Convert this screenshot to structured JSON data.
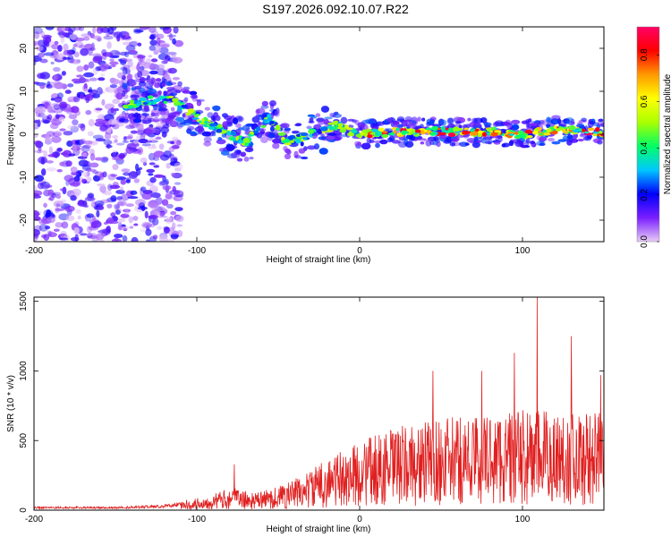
{
  "title": "S197.2026.092.10.07.R22",
  "chart_data": [
    {
      "type": "heatmap",
      "xlabel": "Height of straight line (km)",
      "ylabel": "Frequency (Hz)",
      "xlim": [
        -200,
        150
      ],
      "ylim": [
        -25,
        25
      ],
      "xticks": [
        -200,
        -100,
        0,
        100
      ],
      "yticks": [
        -20,
        -10,
        0,
        10,
        20
      ],
      "colorbar": {
        "label": "Normalized spectral amplitude",
        "ticks": [
          0.0,
          0.2,
          0.4,
          0.6,
          0.8
        ],
        "range": [
          0.0,
          0.92
        ],
        "colormap": [
          "#e8ccf7",
          "#7a1fff",
          "#0000ff",
          "#00c8ff",
          "#00ff66",
          "#aaff00",
          "#ffff00",
          "#ff9900",
          "#ff0000",
          "#ff0066"
        ]
      },
      "ridge": [
        {
          "x": -145,
          "y": 6.5
        },
        {
          "x": -130,
          "y": 8
        },
        {
          "x": -115,
          "y": 8
        },
        {
          "x": -100,
          "y": 4
        },
        {
          "x": -85,
          "y": 1
        },
        {
          "x": -70,
          "y": -2
        },
        {
          "x": -55,
          "y": 4
        },
        {
          "x": -45,
          "y": -2
        },
        {
          "x": -30,
          "y": 0
        },
        {
          "x": -15,
          "y": 2
        },
        {
          "x": 0,
          "y": 0
        },
        {
          "x": 20,
          "y": 0.5
        },
        {
          "x": 40,
          "y": 0.8
        },
        {
          "x": 60,
          "y": 0.5
        },
        {
          "x": 80,
          "y": 0.5
        },
        {
          "x": 100,
          "y": 0
        },
        {
          "x": 120,
          "y": 1
        },
        {
          "x": 150,
          "y": 0.5
        }
      ],
      "noise_region": {
        "x_from": -200,
        "x_to": -110
      }
    },
    {
      "type": "line",
      "xlabel": "Height of straight line (km)",
      "ylabel": "SNR (10 * v/v)",
      "xlim": [
        -200,
        150
      ],
      "ylim": [
        0,
        1530
      ],
      "xticks": [
        -200,
        -100,
        0,
        100
      ],
      "yticks": [
        0,
        500,
        1000,
        1500
      ],
      "color": "#e02020",
      "envelope": [
        {
          "x": -200,
          "y": 25
        },
        {
          "x": -150,
          "y": 25
        },
        {
          "x": -120,
          "y": 40
        },
        {
          "x": -95,
          "y": 90
        },
        {
          "x": -78,
          "y": 150
        },
        {
          "x": -65,
          "y": 110
        },
        {
          "x": -50,
          "y": 160
        },
        {
          "x": -35,
          "y": 230
        },
        {
          "x": -20,
          "y": 340
        },
        {
          "x": -5,
          "y": 420
        },
        {
          "x": 10,
          "y": 500
        },
        {
          "x": 25,
          "y": 550
        },
        {
          "x": 50,
          "y": 600
        },
        {
          "x": 80,
          "y": 640
        },
        {
          "x": 110,
          "y": 660
        },
        {
          "x": 130,
          "y": 650
        },
        {
          "x": 150,
          "y": 640
        }
      ],
      "peaks": [
        {
          "x": -77,
          "y": 330
        },
        {
          "x": 45,
          "y": 1000
        },
        {
          "x": 75,
          "y": 1000
        },
        {
          "x": 95,
          "y": 1130
        },
        {
          "x": 109,
          "y": 1530
        },
        {
          "x": 130,
          "y": 1250
        },
        {
          "x": 148,
          "y": 970
        }
      ]
    }
  ]
}
